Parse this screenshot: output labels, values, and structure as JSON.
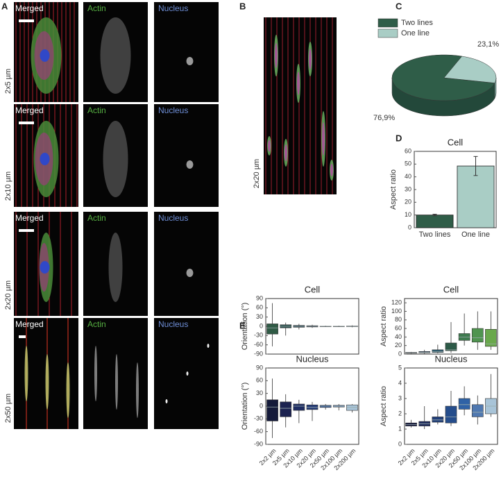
{
  "figure": {
    "panel_labels": [
      "A",
      "B",
      "C",
      "D",
      "E"
    ],
    "channels": [
      "Merged",
      "Actin",
      "Nucleus"
    ],
    "row_labels": [
      "2x5 µm",
      "2x10 µm",
      "2x20 µm",
      "2x50 µm"
    ],
    "b_label": "2x20 µm"
  },
  "chart_data": [
    {
      "type": "pie",
      "categories": [
        "Two lines",
        "One line"
      ],
      "values": [
        76.9,
        23.1
      ],
      "value_labels": [
        "76,9%",
        "23,1%"
      ],
      "colors": [
        "#2f5d48",
        "#a9cdc5"
      ]
    },
    {
      "type": "bar",
      "title": "Cell",
      "y_label": "Aspect ratio",
      "categories": [
        "Two lines",
        "One line"
      ],
      "values": [
        10,
        48.5
      ],
      "errors": [
        0.6,
        7.5
      ],
      "colors": [
        "#2f5d48",
        "#a9cdc5"
      ],
      "ylim": [
        0,
        60
      ],
      "yticks": [
        0,
        10,
        20,
        30,
        40,
        50,
        60
      ]
    },
    {
      "type": "box",
      "title": "Cell",
      "y_label": "Orientation (°)",
      "categories": [
        null,
        null,
        null,
        null,
        null,
        null,
        null
      ],
      "whisker_low": [
        -65,
        -30,
        -10,
        -5,
        -2,
        -2,
        -3
      ],
      "q1": [
        -25,
        -5,
        -3,
        -2,
        -0.5,
        -0.5,
        -1
      ],
      "median": [
        -5,
        0,
        0,
        0,
        0,
        0,
        0
      ],
      "q3": [
        8,
        5,
        3,
        2,
        0.5,
        0.5,
        1
      ],
      "whisker_high": [
        75,
        12,
        8,
        5,
        2,
        2,
        3
      ],
      "colors": [
        "#2f5a45",
        "#2a4f4c",
        "#284552",
        "#233a58",
        "#1f2f58",
        "#1d2a55",
        "#1c2650"
      ],
      "ylim": [
        -90,
        90
      ],
      "yticks": [
        -90,
        -60,
        -30,
        0,
        30,
        60,
        90
      ]
    },
    {
      "type": "box",
      "title": "Cell",
      "y_label": "Aspect ratio",
      "categories": [
        null,
        null,
        null,
        null,
        null,
        null,
        null
      ],
      "whisker_low": [
        1,
        1,
        2,
        3,
        20,
        10,
        10
      ],
      "q1": [
        2,
        3,
        4,
        8,
        32,
        28,
        18
      ],
      "median": [
        3,
        4,
        6,
        10,
        40,
        38,
        24
      ],
      "q3": [
        4,
        6,
        10,
        26,
        48,
        60,
        58
      ],
      "whisker_high": [
        5,
        10,
        22,
        75,
        95,
        100,
        100
      ],
      "colors": [
        "#1c2345",
        "#1f3a5a",
        "#25566a",
        "#2d5a48",
        "#3e7a4e",
        "#4f944f",
        "#69a84b"
      ],
      "ylim": [
        0,
        130
      ],
      "yticks": [
        0,
        20,
        40,
        60,
        80,
        100,
        120
      ]
    },
    {
      "type": "box",
      "title": "Nucleus",
      "y_label": "Orientation (°)",
      "categories": [
        "2x2 µm",
        "2x5 µm",
        "2x10 µm",
        "2x20 µm",
        "2x50 µm",
        "2x100 µm",
        "2x200 µm"
      ],
      "whisker_low": [
        -75,
        -50,
        -40,
        -35,
        -8,
        -10,
        -15
      ],
      "q1": [
        -35,
        -25,
        -10,
        -8,
        -3,
        -2,
        -10
      ],
      "median": [
        -2,
        -5,
        0,
        -3,
        0,
        0,
        -3
      ],
      "q3": [
        15,
        10,
        5,
        3,
        2,
        2,
        3
      ],
      "whisker_high": [
        65,
        28,
        15,
        10,
        5,
        5,
        5
      ],
      "colors": [
        "#141a3a",
        "#1c2350",
        "#1e2d63",
        "#233a78",
        "#2f5696",
        "#6b8cb8",
        "#a8c4d8"
      ],
      "ylim": [
        -90,
        90
      ],
      "yticks": [
        -90,
        -60,
        -30,
        0,
        30,
        60,
        90
      ]
    },
    {
      "type": "box",
      "title": "Nucleus",
      "y_label": "Aspect ratio",
      "categories": [
        "2x2 µm",
        "2x5 µm",
        "2x10 µm",
        "2x20 µm",
        "2x50 µm",
        "2x100 µm",
        "2x200 µm"
      ],
      "whisker_low": [
        1.1,
        1.0,
        1.3,
        1.2,
        1.9,
        1.3,
        1.8
      ],
      "q1": [
        1.2,
        1.2,
        1.45,
        1.4,
        2.3,
        1.8,
        2.0
      ],
      "median": [
        1.3,
        1.35,
        1.6,
        1.8,
        2.6,
        2.1,
        2.5
      ],
      "q3": [
        1.4,
        1.5,
        1.8,
        2.5,
        3.0,
        2.6,
        3.0
      ],
      "whisker_high": [
        1.6,
        2.5,
        2.3,
        3.5,
        3.8,
        3.2,
        4.6
      ],
      "colors": [
        "#1a1f45",
        "#1d2a5c",
        "#213f7a",
        "#254d8c",
        "#2f62a6",
        "#4f78b0",
        "#a8c4d8"
      ],
      "ylim": [
        0,
        5
      ],
      "yticks": [
        0,
        1,
        2,
        3,
        4,
        5
      ]
    }
  ]
}
